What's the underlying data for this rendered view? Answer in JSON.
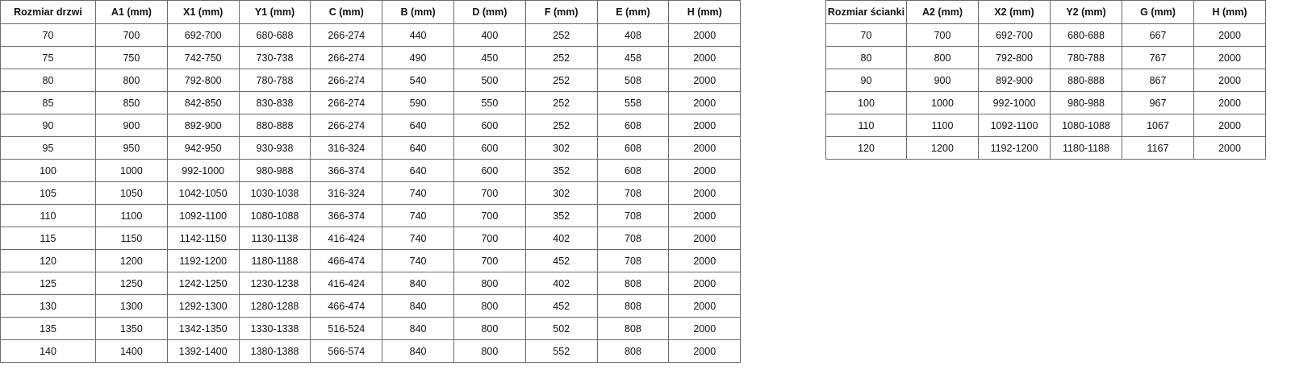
{
  "door_table": {
    "headers": [
      "Rozmiar drzwi",
      "A1 (mm)",
      "X1 (mm)",
      "Y1 (mm)",
      "C (mm)",
      "B (mm)",
      "D (mm)",
      "F (mm)",
      "E (mm)",
      "H (mm)"
    ],
    "rows": [
      [
        "70",
        "700",
        "692-700",
        "680-688",
        "266-274",
        "440",
        "400",
        "252",
        "408",
        "2000"
      ],
      [
        "75",
        "750",
        "742-750",
        "730-738",
        "266-274",
        "490",
        "450",
        "252",
        "458",
        "2000"
      ],
      [
        "80",
        "800",
        "792-800",
        "780-788",
        "266-274",
        "540",
        "500",
        "252",
        "508",
        "2000"
      ],
      [
        "85",
        "850",
        "842-850",
        "830-838",
        "266-274",
        "590",
        "550",
        "252",
        "558",
        "2000"
      ],
      [
        "90",
        "900",
        "892-900",
        "880-888",
        "266-274",
        "640",
        "600",
        "252",
        "608",
        "2000"
      ],
      [
        "95",
        "950",
        "942-950",
        "930-938",
        "316-324",
        "640",
        "600",
        "302",
        "608",
        "2000"
      ],
      [
        "100",
        "1000",
        "992-1000",
        "980-988",
        "366-374",
        "640",
        "600",
        "352",
        "608",
        "2000"
      ],
      [
        "105",
        "1050",
        "1042-1050",
        "1030-1038",
        "316-324",
        "740",
        "700",
        "302",
        "708",
        "2000"
      ],
      [
        "110",
        "1100",
        "1092-1100",
        "1080-1088",
        "366-374",
        "740",
        "700",
        "352",
        "708",
        "2000"
      ],
      [
        "115",
        "1150",
        "1142-1150",
        "1130-1138",
        "416-424",
        "740",
        "700",
        "402",
        "708",
        "2000"
      ],
      [
        "120",
        "1200",
        "1192-1200",
        "1180-1188",
        "466-474",
        "740",
        "700",
        "452",
        "708",
        "2000"
      ],
      [
        "125",
        "1250",
        "1242-1250",
        "1230-1238",
        "416-424",
        "840",
        "800",
        "402",
        "808",
        "2000"
      ],
      [
        "130",
        "1300",
        "1292-1300",
        "1280-1288",
        "466-474",
        "840",
        "800",
        "452",
        "808",
        "2000"
      ],
      [
        "135",
        "1350",
        "1342-1350",
        "1330-1338",
        "516-524",
        "840",
        "800",
        "502",
        "808",
        "2000"
      ],
      [
        "140",
        "1400",
        "1392-1400",
        "1380-1388",
        "566-574",
        "840",
        "800",
        "552",
        "808",
        "2000"
      ]
    ]
  },
  "wall_table": {
    "headers": [
      "Rozmiar ścianki",
      "A2 (mm)",
      "X2 (mm)",
      "Y2 (mm)",
      "G (mm)",
      "H (mm)"
    ],
    "rows": [
      [
        "70",
        "700",
        "692-700",
        "680-688",
        "667",
        "2000"
      ],
      [
        "80",
        "800",
        "792-800",
        "780-788",
        "767",
        "2000"
      ],
      [
        "90",
        "900",
        "892-900",
        "880-888",
        "867",
        "2000"
      ],
      [
        "100",
        "1000",
        "992-1000",
        "980-988",
        "967",
        "2000"
      ],
      [
        "110",
        "1100",
        "1092-1100",
        "1080-1088",
        "1067",
        "2000"
      ],
      [
        "120",
        "1200",
        "1192-1200",
        "1180-1188",
        "1167",
        "2000"
      ]
    ]
  }
}
